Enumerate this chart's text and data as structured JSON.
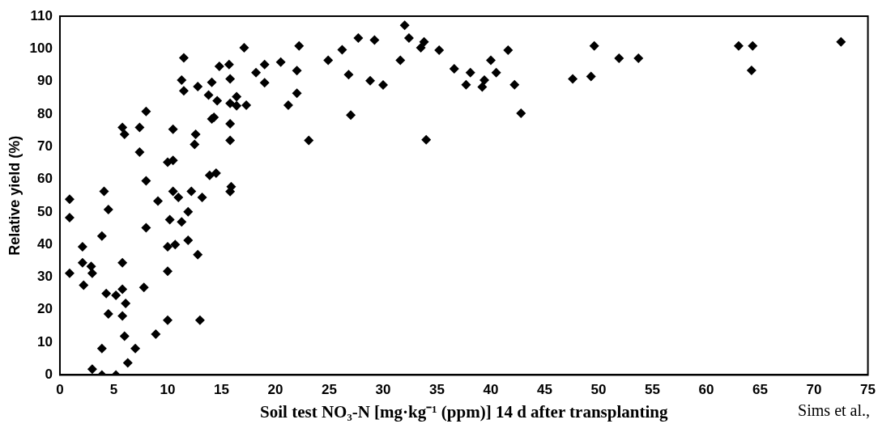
{
  "chart_data": {
    "type": "scatter",
    "xlabel": "Soil test NO₃-N [mg·kg⁻¹ (ppm)] 14 d after transplanting",
    "ylabel": "Relative yield (%)",
    "annotations": [
      "Sims et al.,"
    ],
    "marker": "diamond",
    "xlim": [
      0,
      75
    ],
    "xticks": [
      0,
      5,
      10,
      15,
      20,
      25,
      30,
      35,
      40,
      45,
      50,
      55,
      60,
      65,
      70,
      75
    ],
    "ylim": [
      0,
      110
    ],
    "yticks": [
      0,
      10,
      20,
      30,
      40,
      50,
      60,
      70,
      80,
      90,
      100,
      110
    ],
    "series": [
      {
        "color": "#000000",
        "x": [
          5.8,
          6.0,
          7.4,
          10.5,
          12.6,
          12.5,
          7.4,
          10.0,
          10.5,
          8.0,
          13.9,
          14.5,
          0.9,
          4.1,
          4.5,
          0.9,
          9.1,
          10.5,
          11.0,
          12.2,
          13.2,
          11.9,
          10.2,
          11.3,
          8.0,
          3.9,
          2.1,
          10.0,
          10.7,
          11.9,
          12.8,
          2.1,
          2.9,
          3.0,
          0.9,
          5.8,
          10.0,
          2.2,
          4.3,
          5.2,
          5.8,
          6.1,
          7.8,
          4.5,
          5.8,
          10.0,
          13.0,
          6.0,
          8.9,
          3.9,
          7.0,
          6.3,
          3.0,
          3.9,
          5.2,
          11.5,
          14.8,
          11.3,
          11.5,
          12.8,
          14.1,
          13.8,
          14.6,
          14.1,
          14.3,
          8.0,
          17.1,
          22.2,
          27.7,
          29.2,
          32.0,
          32.4,
          33.5,
          26.2,
          24.9,
          31.6,
          15.7,
          19.0,
          20.5,
          18.2,
          22.0,
          26.8,
          19.0,
          15.8,
          28.8,
          30.0,
          15.8,
          16.4,
          16.4,
          17.3,
          22.0,
          21.2,
          15.8,
          15.8,
          23.1,
          27.0,
          15.9,
          15.8,
          33.8,
          35.2,
          41.6,
          36.6,
          38.1,
          40.0,
          40.5,
          37.7,
          39.4,
          39.2,
          42.2,
          42.8,
          34.0,
          49.6,
          47.6,
          49.3,
          51.9,
          53.7,
          63.0,
          64.3,
          64.2,
          72.5
        ],
        "values": [
          75.9,
          73.8,
          75.9,
          75.3,
          73.8,
          70.7,
          68.3,
          65.2,
          65.8,
          59.5,
          61.2,
          61.9,
          53.9,
          56.3,
          50.7,
          48.2,
          53.3,
          56.3,
          54.4,
          56.3,
          54.4,
          50.0,
          47.6,
          46.9,
          45.1,
          42.6,
          39.3,
          39.3,
          40.0,
          41.3,
          36.9,
          34.4,
          33.3,
          31.2,
          31.2,
          34.4,
          31.8,
          27.5,
          25.0,
          24.4,
          26.3,
          21.9,
          26.8,
          18.7,
          18.1,
          16.8,
          16.8,
          11.9,
          12.5,
          8.1,
          8.1,
          3.7,
          1.8,
          0,
          0,
          97.2,
          94.6,
          90.4,
          87.1,
          88.4,
          89.7,
          85.8,
          84.1,
          78.5,
          79.0,
          80.8,
          100.3,
          100.9,
          103.3,
          102.7,
          107.2,
          103.3,
          100.3,
          99.7,
          96.5,
          96.5,
          95.2,
          95.2,
          95.9,
          92.7,
          93.3,
          92.1,
          89.6,
          90.8,
          90.2,
          88.9,
          83.3,
          85.3,
          82.5,
          82.7,
          86.4,
          82.7,
          77.0,
          71.9,
          71.9,
          79.7,
          57.7,
          56.2,
          102.1,
          99.6,
          99.6,
          93.9,
          92.7,
          96.5,
          92.7,
          89.0,
          90.4,
          88.3,
          89.0,
          80.2,
          72.1,
          100.9,
          90.8,
          91.5,
          97.1,
          97.1,
          100.9,
          100.9,
          93.4,
          102.1
        ]
      }
    ]
  }
}
